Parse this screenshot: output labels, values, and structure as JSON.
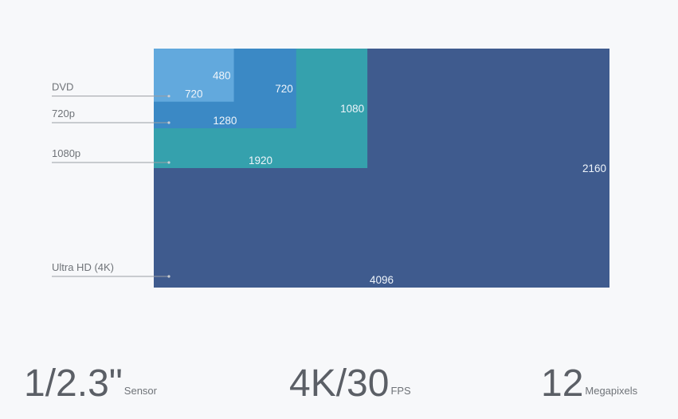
{
  "resolutions": [
    {
      "label": "Ultra HD (4K)",
      "width": 4096,
      "height": 2160,
      "color": "#3f5b8e"
    },
    {
      "label": "1080p",
      "width": 1920,
      "height": 1080,
      "color": "#35a1ad"
    },
    {
      "label": "720p",
      "width": 1280,
      "height": 720,
      "color": "#3b89c5"
    },
    {
      "label": "DVD",
      "width": 720,
      "height": 480,
      "color": "#62a9dd"
    }
  ],
  "specs": [
    {
      "value": "1/2.3\"",
      "unit": "Sensor"
    },
    {
      "value": "4K/30",
      "unit": "FPS"
    },
    {
      "value": "12",
      "unit": "Megapixels"
    }
  ]
}
